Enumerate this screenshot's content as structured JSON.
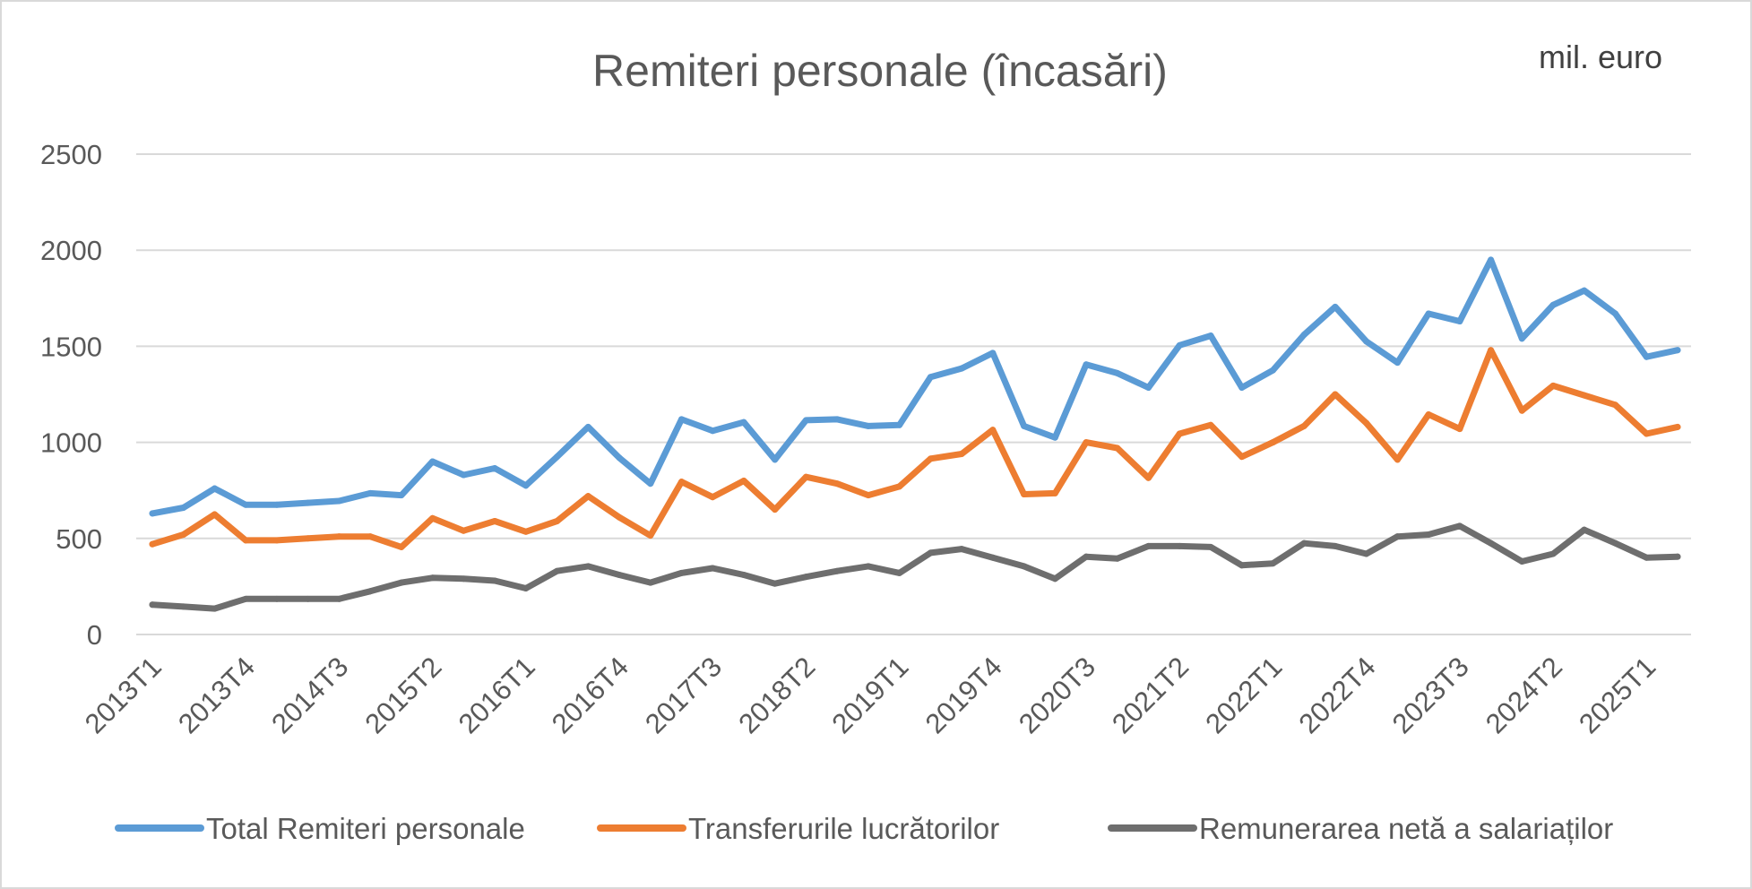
{
  "chart_data": {
    "type": "line",
    "title": "Remiteri personale (încasări)",
    "unit_label": "mil. euro",
    "xlabel": "",
    "ylabel": "",
    "ylim": [
      0,
      2500
    ],
    "yticks": [
      0,
      500,
      1000,
      1500,
      2000,
      2500
    ],
    "grid": true,
    "legend_position": "bottom",
    "x": [
      "2013T1",
      "2013T2",
      "2013T3",
      "2013T4",
      "2014T1",
      "2014T2",
      "2014T3",
      "2014T4",
      "2015T1",
      "2015T2",
      "2015T3",
      "2015T4",
      "2016T1",
      "2016T2",
      "2016T3",
      "2016T4",
      "2017T1",
      "2017T2",
      "2017T3",
      "2017T4",
      "2018T1",
      "2018T2",
      "2018T3",
      "2018T4",
      "2019T1",
      "2019T2",
      "2019T3",
      "2019T4",
      "2020T1",
      "2020T2",
      "2020T3",
      "2020T4",
      "2021T1",
      "2021T2",
      "2021T3",
      "2021T4",
      "2022T1",
      "2022T2",
      "2022T3",
      "2022T4",
      "2023T1",
      "2023T2",
      "2023T3",
      "2023T4",
      "2024T1",
      "2024T2",
      "2024T3",
      "2024T4",
      "2025T1",
      "2025T2"
    ],
    "x_tick_labels": [
      "2013T1",
      "2013T4",
      "2014T3",
      "2015T2",
      "2016T1",
      "2016T4",
      "2017T3",
      "2018T2",
      "2019T1",
      "2019T4",
      "2020T3",
      "2021T2",
      "2022T1",
      "2022T4",
      "2023T3",
      "2024T2",
      "2025T1"
    ],
    "series": [
      {
        "name": "Total Remiteri personale",
        "color": "#5b9bd5",
        "values": [
          630,
          660,
          760,
          675,
          675,
          685,
          695,
          735,
          725,
          900,
          830,
          865,
          775,
          925,
          1080,
          920,
          785,
          1120,
          1060,
          1105,
          910,
          1115,
          1120,
          1085,
          1090,
          1340,
          1385,
          1465,
          1085,
          1025,
          1405,
          1360,
          1285,
          1505,
          1555,
          1285,
          1375,
          1560,
          1705,
          1525,
          1415,
          1670,
          1630,
          1950,
          1540,
          1715,
          1790,
          1670,
          1445,
          1480
        ]
      },
      {
        "name": "Transferurile lucrătorilor",
        "color": "#ed7d31",
        "values": [
          470,
          520,
          625,
          490,
          490,
          500,
          510,
          510,
          455,
          605,
          540,
          590,
          535,
          590,
          720,
          610,
          515,
          795,
          715,
          800,
          650,
          820,
          785,
          725,
          770,
          915,
          940,
          1065,
          730,
          735,
          1000,
          970,
          815,
          1045,
          1090,
          925,
          1000,
          1085,
          1250,
          1100,
          910,
          1145,
          1070,
          1480,
          1165,
          1295,
          1245,
          1195,
          1045,
          1080
        ]
      },
      {
        "name": "Remunerarea netă a salariaților",
        "color": "#6e6e6e",
        "values": [
          155,
          145,
          135,
          185,
          185,
          185,
          185,
          225,
          270,
          295,
          290,
          280,
          240,
          330,
          355,
          310,
          270,
          320,
          345,
          310,
          265,
          300,
          330,
          355,
          320,
          425,
          445,
          400,
          355,
          290,
          405,
          395,
          460,
          460,
          455,
          360,
          370,
          475,
          460,
          420,
          510,
          520,
          565,
          475,
          380,
          420,
          545,
          475,
          400,
          405
        ]
      }
    ]
  }
}
